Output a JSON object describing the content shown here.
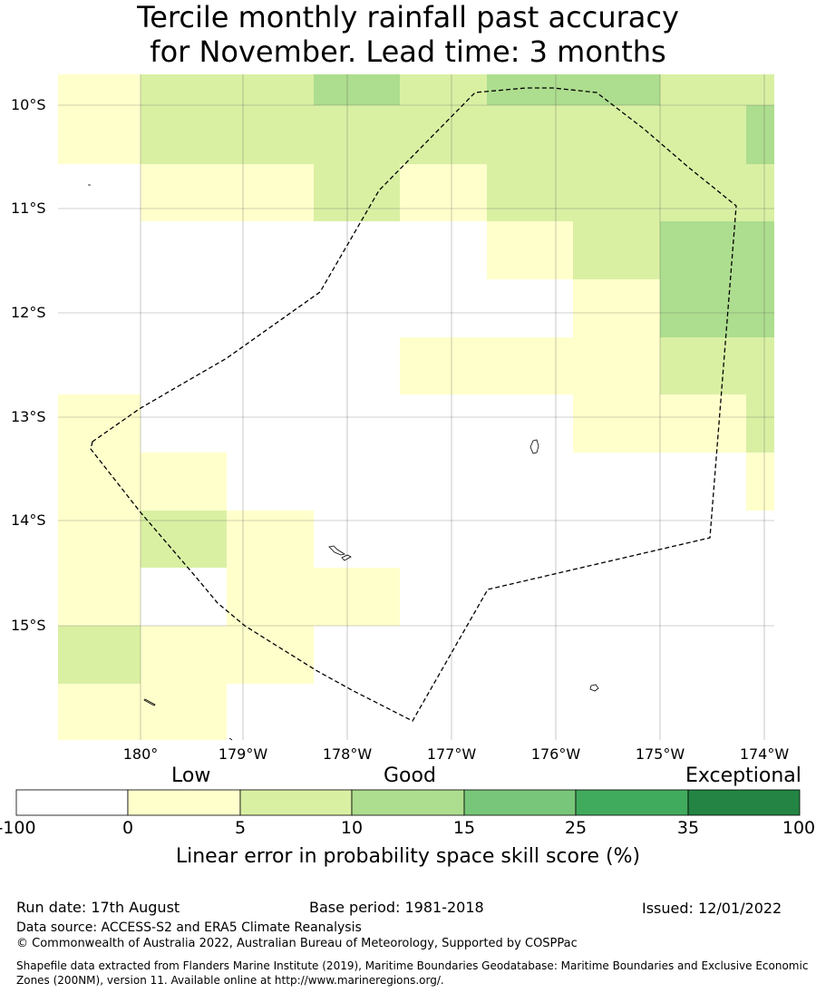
{
  "title": {
    "line1": "Tercile monthly rainfall past accuracy",
    "line2": "for November. Lead time: 3 months"
  },
  "map": {
    "lat_labels": [
      "10°S",
      "11°S",
      "12°S",
      "13°S",
      "14°S",
      "15°S"
    ],
    "lon_labels": [
      "180°",
      "179°W",
      "178°W",
      "177°W",
      "176°W",
      "175°W",
      "174°W"
    ],
    "lon_range": [
      179.2,
      -173.9
    ],
    "lat_range": [
      -9.7,
      -16.1
    ],
    "grid": true,
    "boundary": "dashed EEZ outline",
    "skill_grid": {
      "cell_size_deg": 0.833,
      "rows_top_to_bottom": [
        [
          1,
          2,
          2,
          3,
          2,
          3,
          3,
          2,
          2
        ],
        [
          1,
          2,
          2,
          2,
          2,
          2,
          2,
          2,
          3
        ],
        [
          0,
          1,
          1,
          2,
          1,
          2,
          2,
          2,
          2
        ],
        [
          0,
          0,
          0,
          0,
          0,
          1,
          2,
          3,
          3
        ],
        [
          0,
          0,
          0,
          0,
          0,
          0,
          1,
          3,
          3
        ],
        [
          0,
          0,
          0,
          0,
          1,
          1,
          1,
          2,
          2
        ],
        [
          1,
          0,
          0,
          0,
          0,
          0,
          1,
          1,
          2
        ],
        [
          1,
          1,
          0,
          0,
          0,
          0,
          0,
          0,
          1
        ],
        [
          1,
          2,
          1,
          0,
          0,
          0,
          0,
          0,
          0
        ],
        [
          1,
          0,
          1,
          1,
          0,
          0,
          0,
          0,
          0
        ],
        [
          2,
          1,
          1,
          0,
          0,
          0,
          0,
          0,
          0
        ],
        [
          1,
          1,
          0,
          0,
          0,
          0,
          0,
          0,
          0
        ]
      ]
    }
  },
  "colorbar": {
    "categories": [
      "Low",
      "Good",
      "Exceptional"
    ],
    "ticks": [
      "-100",
      "0",
      "5",
      "10",
      "15",
      "25",
      "35",
      "100"
    ],
    "colors": [
      "#ffffff",
      "#ffffcc",
      "#d9f0a3",
      "#addd8e",
      "#78c679",
      "#41ab5d",
      "#238443"
    ],
    "title": "Linear error in probability space skill score (%)"
  },
  "footer": {
    "run_date": "Run date: 17th August",
    "base_period": "Base period: 1981-2018",
    "issued": "Issued: 12/01/2022",
    "data_source": "Data source: ACCESS-S2 and ERA5 Climate Reanalysis",
    "copyright": "© Commonwealth of Australia 2022, Australian Bureau of Meteorology, Supported by COSPPac",
    "shapefile": "Shapefile data extracted from Flanders Marine Institute (2019), Maritime Boundaries Geodatabase: Maritime Boundaries and Exclusive Economic Zones (200NM), version 11. Available online at http://www.marineregions.org/."
  }
}
